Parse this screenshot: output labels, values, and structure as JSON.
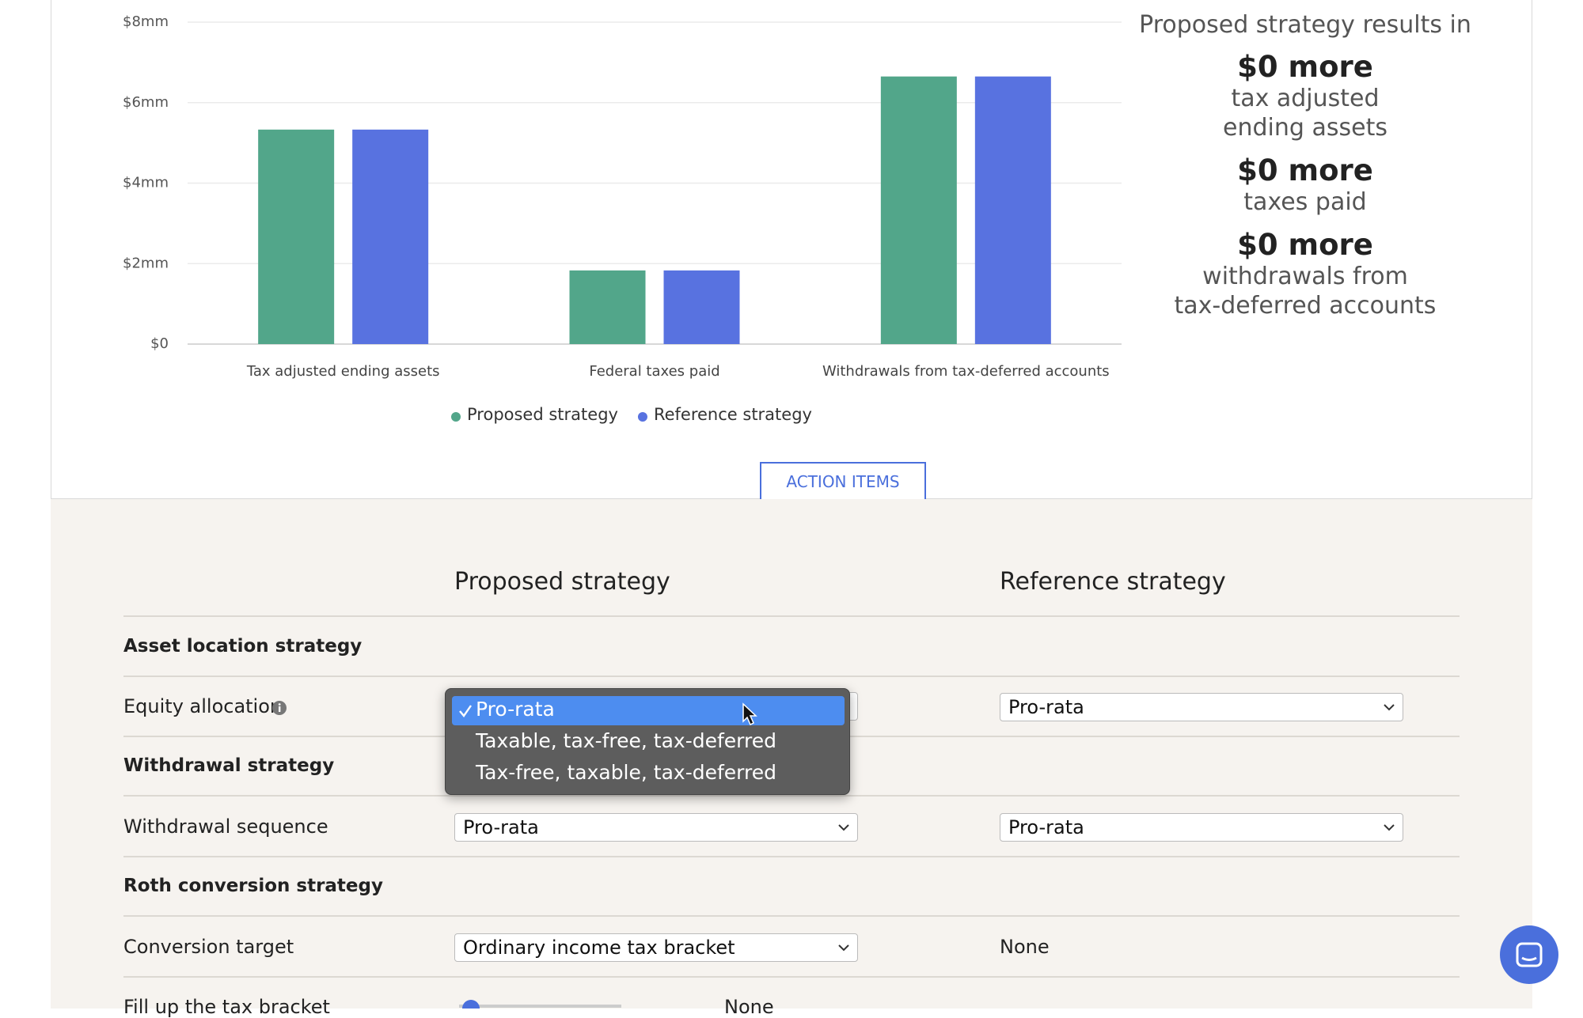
{
  "chart_data": {
    "type": "bar",
    "categories": [
      "Tax adjusted ending assets",
      "Federal taxes paid",
      "Withdrawals from tax-deferred accounts"
    ],
    "series": [
      {
        "name": "Proposed strategy",
        "color": "#52a68a",
        "values": [
          5.33,
          1.83,
          6.65
        ]
      },
      {
        "name": "Reference strategy",
        "color": "#5872e0",
        "values": [
          5.33,
          1.83,
          6.65
        ]
      }
    ],
    "ylim": [
      0,
      8
    ],
    "yticks": [
      {
        "value": 0,
        "label": "$0"
      },
      {
        "value": 2,
        "label": "$2mm"
      },
      {
        "value": 4,
        "label": "$4mm"
      },
      {
        "value": 6,
        "label": "$6mm"
      },
      {
        "value": 8,
        "label": "$8mm"
      }
    ],
    "grid": true,
    "legend": "bottom"
  },
  "summary": {
    "title": "Proposed strategy results in",
    "items": [
      {
        "amount": "$0 more",
        "label_lines": [
          "tax adjusted",
          "ending assets"
        ]
      },
      {
        "amount": "$0 more",
        "label_lines": [
          "taxes paid"
        ]
      },
      {
        "amount": "$0 more",
        "label_lines": [
          "withdrawals from",
          "tax-deferred accounts"
        ]
      }
    ]
  },
  "button": "ACTION ITEMS",
  "table": {
    "columns": [
      "Proposed strategy",
      "Reference strategy"
    ],
    "rows": [
      {
        "section": "Asset location strategy"
      },
      {
        "label": "Equity allocation",
        "reference": "Pro-rata"
      },
      {
        "section": "Withdrawal strategy"
      },
      {
        "label": "Withdrawal sequence",
        "proposed": "Pro-rata",
        "reference": "Pro-rata"
      },
      {
        "section": "Roth conversion strategy"
      },
      {
        "label": "Conversion target",
        "proposed": "Ordinary income tax bracket",
        "reference": "None"
      },
      {
        "label": "Fill up the tax bracket",
        "value": "None"
      }
    ]
  },
  "menu": {
    "options": [
      "Pro-rata",
      "Taxable, tax-free, tax-deferred",
      "Tax-free, taxable, tax-deferred"
    ],
    "selected": 0
  }
}
